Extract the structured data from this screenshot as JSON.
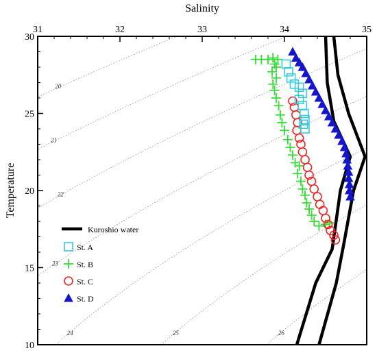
{
  "chart_data": {
    "type": "scatter",
    "title": "",
    "xlabel": "Salinity",
    "ylabel": "Temperature",
    "xlim": [
      31,
      35
    ],
    "ylim": [
      10,
      30
    ],
    "x_ticks": [
      "31",
      "32",
      "33",
      "34",
      "35"
    ],
    "y_ticks": [
      "10",
      "15",
      "20",
      "25",
      "30"
    ],
    "grid": false,
    "legend_position": "lower-left",
    "density_isopleths": [
      {
        "label": "20",
        "value": 20
      },
      {
        "label": "21",
        "value": 21
      },
      {
        "label": "22",
        "value": 22
      },
      {
        "label": "23",
        "value": 23
      },
      {
        "label": "24",
        "value": 24
      },
      {
        "label": "25",
        "value": 25
      },
      {
        "label": "26",
        "value": 26
      }
    ],
    "kuroshio_water": {
      "name": "Kuroshio water",
      "color": "#000000",
      "lines": [
        [
          [
            34.15,
            10
          ],
          [
            34.38,
            14
          ],
          [
            34.58,
            16.2
          ],
          [
            34.68,
            20
          ],
          [
            34.8,
            22.2
          ],
          [
            34.6,
            24.5
          ],
          [
            34.52,
            27
          ],
          [
            34.5,
            30
          ]
        ],
        [
          [
            34.42,
            10
          ],
          [
            34.63,
            14
          ],
          [
            34.72,
            16.5
          ],
          [
            34.84,
            20
          ],
          [
            34.98,
            22.2
          ],
          [
            34.78,
            25
          ],
          [
            34.65,
            27.5
          ],
          [
            34.6,
            30
          ]
        ]
      ]
    },
    "series": [
      {
        "name": "St. A",
        "marker": "square",
        "color": "#33CCDD",
        "points": [
          [
            34.02,
            28.2
          ],
          [
            34.05,
            27.7
          ],
          [
            34.08,
            27.3
          ],
          [
            34.12,
            26.9
          ],
          [
            34.18,
            26.7
          ],
          [
            34.22,
            26.3
          ],
          [
            34.18,
            25.9
          ],
          [
            34.22,
            25.5
          ],
          [
            34.24,
            25.0
          ],
          [
            34.25,
            24.6
          ],
          [
            34.23,
            24.3
          ],
          [
            34.25,
            24.0
          ]
        ]
      },
      {
        "name": "St. B",
        "marker": "plus",
        "color": "#33DD33",
        "points": [
          [
            33.65,
            28.5
          ],
          [
            33.72,
            28.5
          ],
          [
            33.8,
            28.5
          ],
          [
            33.86,
            28.6
          ],
          [
            33.92,
            28.5
          ],
          [
            33.88,
            28.2
          ],
          [
            33.9,
            28.0
          ],
          [
            33.85,
            27.7
          ],
          [
            33.9,
            27.3
          ],
          [
            33.86,
            26.9
          ],
          [
            33.88,
            26.5
          ],
          [
            33.9,
            26.0
          ],
          [
            33.93,
            25.5
          ],
          [
            33.95,
            24.9
          ],
          [
            33.97,
            24.4
          ],
          [
            34.0,
            23.9
          ],
          [
            34.04,
            23.3
          ],
          [
            34.07,
            22.8
          ],
          [
            34.1,
            22.3
          ],
          [
            34.13,
            21.8
          ],
          [
            34.18,
            21.6
          ],
          [
            34.16,
            21.1
          ],
          [
            34.2,
            20.6
          ],
          [
            34.22,
            20.1
          ],
          [
            34.25,
            19.7
          ],
          [
            34.27,
            19.2
          ],
          [
            34.3,
            18.8
          ],
          [
            34.33,
            18.4
          ],
          [
            34.36,
            18.0
          ],
          [
            34.42,
            17.7
          ],
          [
            34.5,
            17.8
          ],
          [
            34.55,
            17.9
          ]
        ]
      },
      {
        "name": "St. C",
        "marker": "circle",
        "color": "#EE2222",
        "points": [
          [
            34.1,
            25.8
          ],
          [
            34.12,
            25.4
          ],
          [
            34.14,
            24.9
          ],
          [
            34.16,
            24.4
          ],
          [
            34.15,
            23.9
          ],
          [
            34.18,
            23.4
          ],
          [
            34.2,
            23.0
          ],
          [
            34.22,
            22.5
          ],
          [
            34.25,
            22.0
          ],
          [
            34.28,
            21.5
          ],
          [
            34.3,
            21.0
          ],
          [
            34.33,
            20.6
          ],
          [
            34.36,
            20.1
          ],
          [
            34.4,
            19.6
          ],
          [
            34.43,
            19.1
          ],
          [
            34.47,
            18.7
          ],
          [
            34.5,
            18.2
          ],
          [
            34.53,
            17.8
          ],
          [
            34.56,
            17.4
          ],
          [
            34.6,
            17.1
          ],
          [
            34.62,
            16.8
          ]
        ]
      },
      {
        "name": "St. D",
        "marker": "triangle",
        "color": "#1515CC",
        "points": [
          [
            34.1,
            29.0
          ],
          [
            34.14,
            28.6
          ],
          [
            34.18,
            28.3
          ],
          [
            34.22,
            28.0
          ],
          [
            34.26,
            27.6
          ],
          [
            34.3,
            27.2
          ],
          [
            34.34,
            26.8
          ],
          [
            34.38,
            26.4
          ],
          [
            34.42,
            26.0
          ],
          [
            34.46,
            25.6
          ],
          [
            34.5,
            25.2
          ],
          [
            34.54,
            24.8
          ],
          [
            34.58,
            24.4
          ],
          [
            34.62,
            24.0
          ],
          [
            34.66,
            23.6
          ],
          [
            34.7,
            23.2
          ],
          [
            34.73,
            22.8
          ],
          [
            34.75,
            22.4
          ],
          [
            34.76,
            22.0
          ],
          [
            34.77,
            21.6
          ],
          [
            34.78,
            21.2
          ],
          [
            34.78,
            20.8
          ],
          [
            34.79,
            20.4
          ],
          [
            34.79,
            20.0
          ],
          [
            34.8,
            19.6
          ]
        ]
      }
    ]
  }
}
